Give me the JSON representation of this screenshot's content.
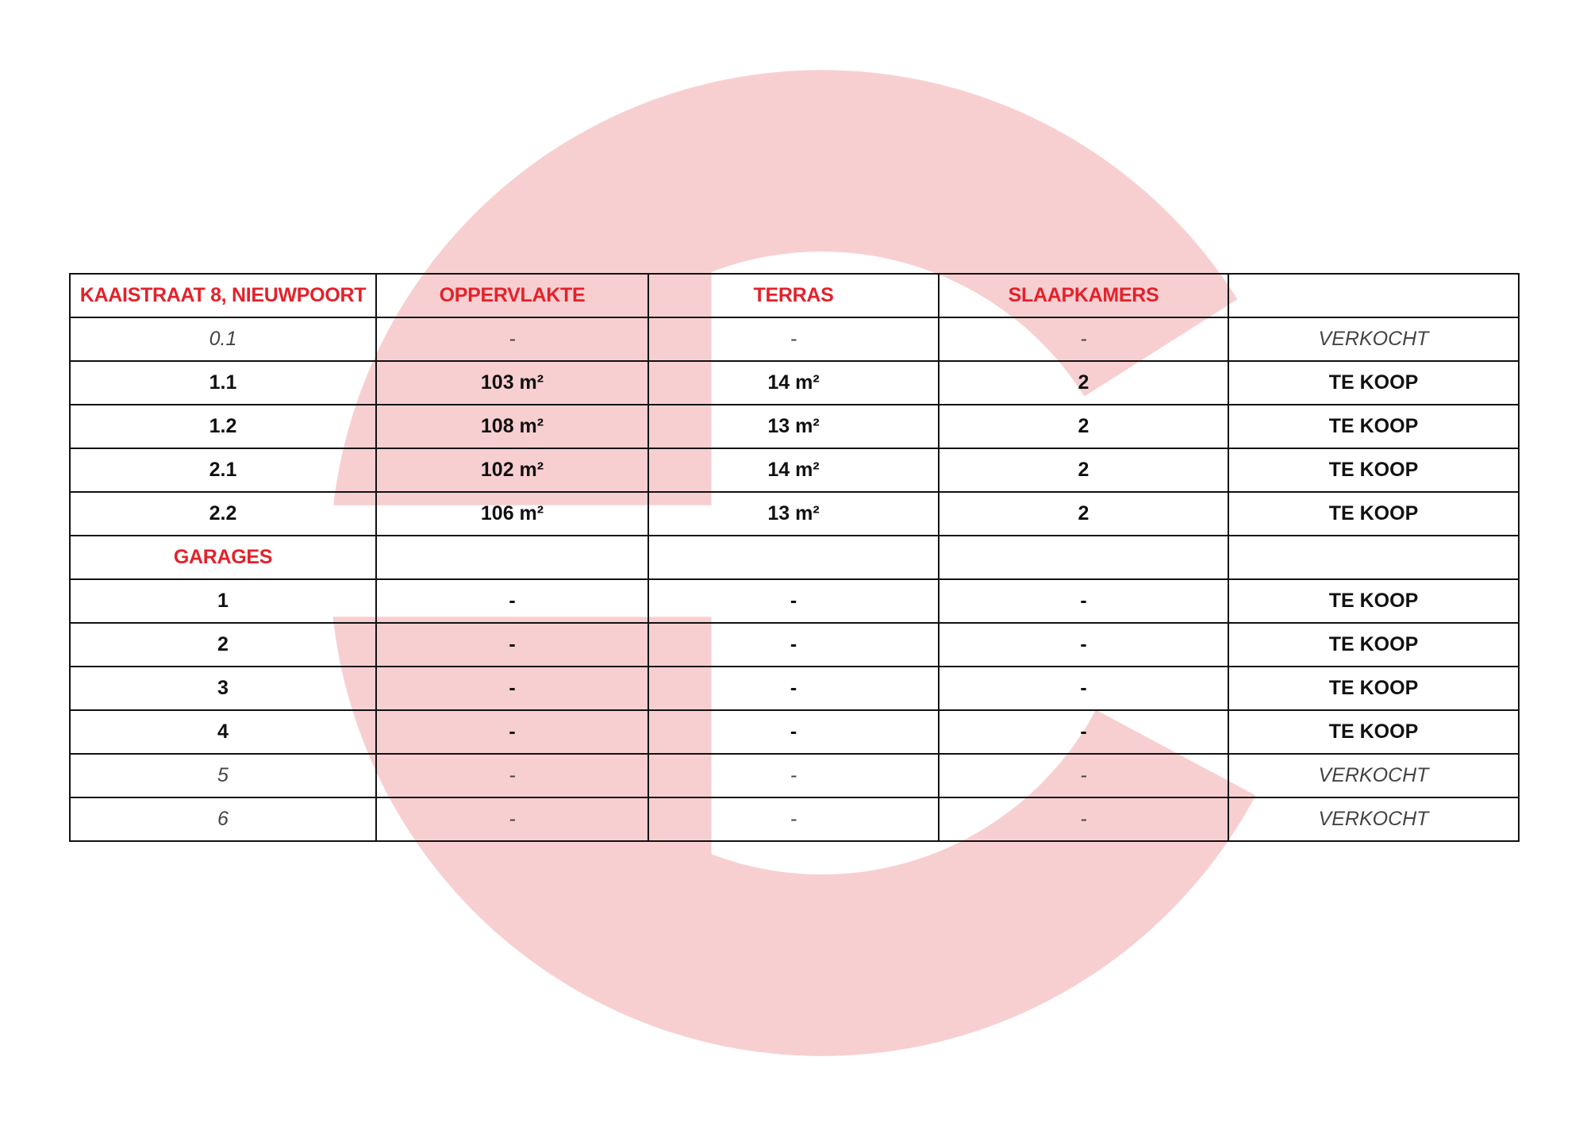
{
  "colors": {
    "accent": "#e3222b",
    "watermark": "#f8cfd1",
    "border": "#111111"
  },
  "watermark": {
    "icon": "letter-c-logo"
  },
  "table": {
    "header": [
      "KAAISTRAAT 8, NIEUWPOORT",
      "OPPERVLAKTE",
      "TERRAS",
      "SLAAPKAMERS",
      ""
    ],
    "rows": [
      {
        "style": "light",
        "cells": [
          "0.1",
          "-",
          "-",
          "-",
          "VERKOCHT"
        ]
      },
      {
        "style": "bold",
        "cells": [
          "1.1",
          "103 m²",
          "14 m²",
          "2",
          "TE KOOP"
        ]
      },
      {
        "style": "bold",
        "cells": [
          "1.2",
          "108 m²",
          "13 m²",
          "2",
          "TE KOOP"
        ]
      },
      {
        "style": "bold",
        "cells": [
          "2.1",
          "102 m²",
          "14 m²",
          "2",
          "TE KOOP"
        ]
      },
      {
        "style": "bold",
        "cells": [
          "2.2",
          "106 m²",
          "13 m²",
          "2",
          "TE KOOP"
        ]
      },
      {
        "style": "section",
        "cells": [
          "GARAGES",
          "",
          "",
          "",
          ""
        ]
      },
      {
        "style": "bold",
        "cells": [
          "1",
          "-",
          "-",
          "-",
          "TE KOOP"
        ]
      },
      {
        "style": "bold",
        "cells": [
          "2",
          "-",
          "-",
          "-",
          "TE KOOP"
        ]
      },
      {
        "style": "bold",
        "cells": [
          "3",
          "-",
          "-",
          "-",
          "TE KOOP"
        ]
      },
      {
        "style": "bold",
        "cells": [
          "4",
          "-",
          "-",
          "-",
          "TE KOOP"
        ]
      },
      {
        "style": "light",
        "cells": [
          "5",
          "-",
          "-",
          "-",
          "VERKOCHT"
        ]
      },
      {
        "style": "light",
        "cells": [
          "6",
          "-",
          "-",
          "-",
          "VERKOCHT"
        ]
      }
    ]
  }
}
